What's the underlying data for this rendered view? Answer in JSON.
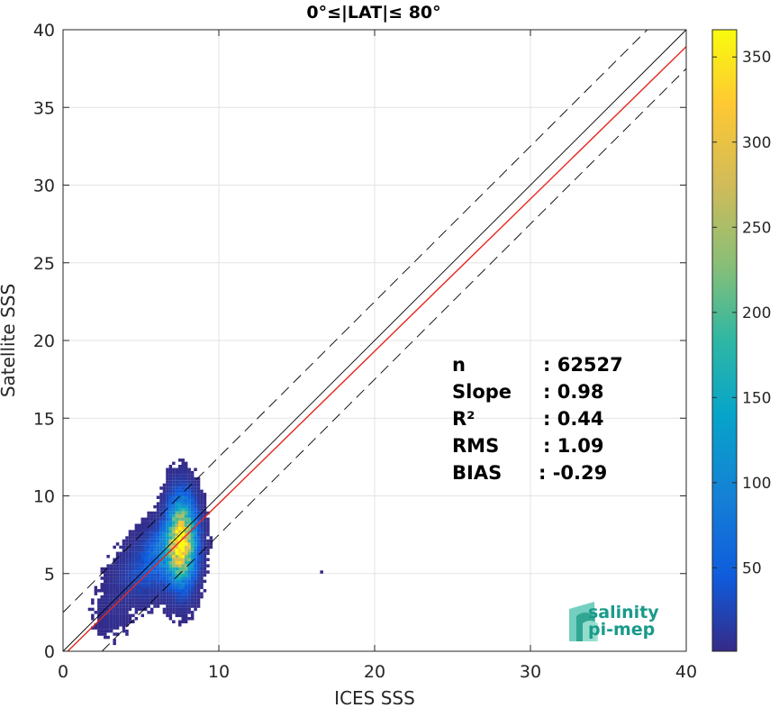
{
  "chart_data": {
    "type": "heatmap",
    "title": "0°≤|LAT|≤ 80°",
    "xlabel": "ICES SSS",
    "ylabel": "Satellite SSS",
    "xlim": [
      0,
      40
    ],
    "ylim": [
      0,
      40
    ],
    "x_ticks": [
      "0",
      "10",
      "20",
      "30",
      "40"
    ],
    "y_ticks": [
      "0",
      "5",
      "10",
      "15",
      "20",
      "25",
      "30",
      "35",
      "40"
    ],
    "grid": true,
    "colormap": "parula",
    "colorbar": {
      "min": 1,
      "max": 366,
      "ticks": [
        "50",
        "100",
        "150",
        "200",
        "250",
        "300",
        "350"
      ]
    },
    "reference_lines": [
      {
        "name": "1:1 line",
        "style": "solid",
        "color": "#000000",
        "slope": 1.0,
        "intercept": 0
      },
      {
        "name": "±2.5 offset",
        "style": "dashed",
        "color": "#000000",
        "slope": 1.0,
        "intercept": 2.5
      },
      {
        "name": "-2.5 offset",
        "style": "dashed",
        "color": "#000000",
        "slope": 1.0,
        "intercept": -2.5
      },
      {
        "name": "regression fit",
        "style": "solid",
        "color": "#e8261d",
        "slope": 0.98,
        "intercept": -0.29
      }
    ],
    "density_clusters": [
      {
        "x": 7.5,
        "y": 7.0,
        "sx": 0.55,
        "sy": 1.6,
        "peak": 366
      },
      {
        "x": 6.5,
        "y": 6.3,
        "sx": 0.9,
        "sy": 1.0,
        "peak": 80
      },
      {
        "x": 5.0,
        "y": 4.8,
        "sx": 1.0,
        "sy": 1.0,
        "peak": 30
      },
      {
        "x": 3.0,
        "y": 2.5,
        "sx": 0.8,
        "sy": 1.2,
        "peak": 6
      }
    ],
    "outliers": [
      {
        "x": 16.5,
        "y": 5.0
      }
    ],
    "stats": [
      {
        "label": "n",
        "value": ": 62527"
      },
      {
        "label": "Slope",
        "value": ": 0.98"
      },
      {
        "label": "R²",
        "value": ": 0.44"
      },
      {
        "label": "RMS",
        "value": ": 1.09"
      },
      {
        "label": "BIAS",
        "value": ": -0.29"
      }
    ]
  },
  "logo": {
    "line1": "salinity",
    "line2": "pi-mep"
  }
}
